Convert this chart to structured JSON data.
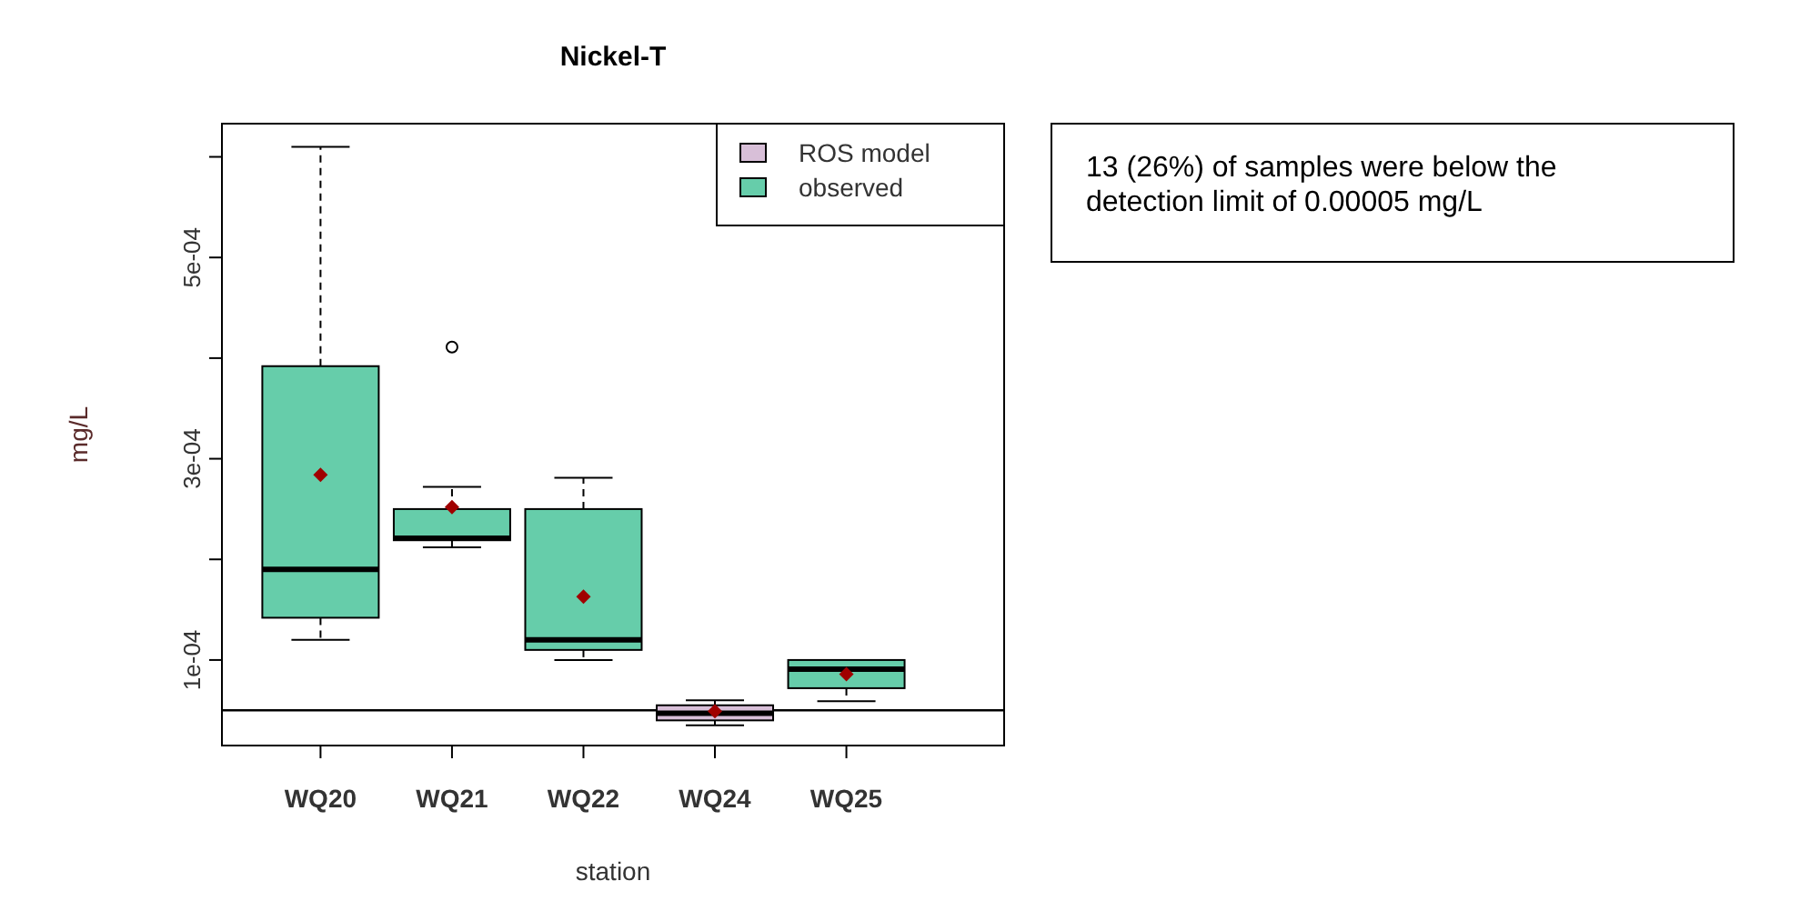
{
  "chart_data": {
    "type": "box",
    "title": "Nickel-T",
    "xlabel": "station",
    "ylabel": "mg/L",
    "categories": [
      "WQ20",
      "WQ21",
      "WQ22",
      "WQ24",
      "WQ25"
    ],
    "series": [
      {
        "name": "ROS model",
        "color": "#d8bfd8",
        "boxes": [
          null,
          null,
          null,
          {
            "low": 3.5e-05,
            "q1": 4e-05,
            "median": 4.7e-05,
            "q3": 5.5e-05,
            "high": 6e-05,
            "mean": 4.9e-05
          },
          null
        ]
      },
      {
        "name": "observed",
        "color": "#66cdaa",
        "boxes": [
          {
            "low": 0.00012,
            "q1": 0.000142,
            "median": 0.00019,
            "q3": 0.000392,
            "high": 0.00061,
            "mean": 0.000284
          },
          {
            "low": 0.000212,
            "q1": 0.000219,
            "median": 0.000221,
            "q3": 0.00025,
            "high": 0.000272,
            "mean": 0.000252,
            "outliers": [
              0.000411
            ]
          },
          {
            "low": 0.0001,
            "q1": 0.00011,
            "median": 0.00012,
            "q3": 0.00025,
            "high": 0.000281,
            "mean": 0.000163
          },
          null,
          {
            "low": 5.9e-05,
            "q1": 7.2e-05,
            "median": 9.1e-05,
            "q3": 0.0001,
            "high": 0.0001,
            "mean": 8.6e-05
          }
        ]
      }
    ],
    "ylim": [
      1.5e-05,
      0.000633
    ],
    "yticks": [
      {
        "value": 0.0001,
        "label": "1e-04"
      },
      {
        "value": 0.0002,
        "label": null
      },
      {
        "value": 0.0003,
        "label": "3e-04"
      },
      {
        "value": 0.0004,
        "label": null
      },
      {
        "value": 0.0005,
        "label": "5e-04"
      },
      {
        "value": 0.0006,
        "label": null
      }
    ],
    "ref_lines": [
      {
        "axis": "y",
        "value": 5e-05,
        "label": null
      }
    ],
    "legend": "top right",
    "annotations": [
      "13 (26%) of samples were below the detection limit of 0.00005 mg/L"
    ]
  }
}
